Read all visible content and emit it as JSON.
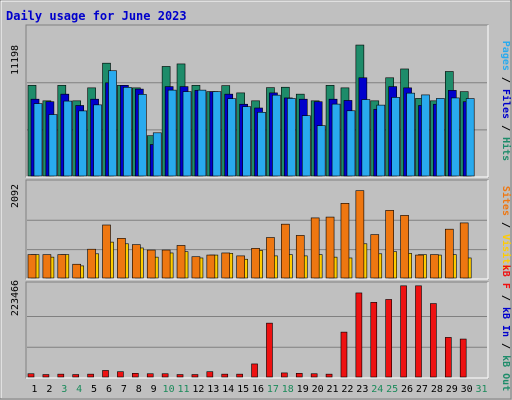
{
  "page": {
    "title": "Daily usage for June 2023",
    "colors": {
      "background": "#c0c0c0",
      "title": "#0000cc",
      "weekday": "#000000",
      "weekend": "#1a8a5a"
    }
  },
  "chart_data": [
    {
      "type": "bar",
      "name": "hits-files-pages",
      "categories": [
        "1",
        "2",
        "3",
        "4",
        "5",
        "6",
        "7",
        "8",
        "9",
        "10",
        "11",
        "12",
        "13",
        "14",
        "15",
        "16",
        "17",
        "18",
        "19",
        "20",
        "21",
        "22",
        "23",
        "24",
        "25",
        "26",
        "27",
        "28",
        "29",
        "30",
        "31"
      ],
      "y_tick_label": "11198",
      "ylim": [
        0,
        11198
      ],
      "series": [
        {
          "name": "Hits",
          "color": "#1e8c6a",
          "values": [
            7200,
            5970,
            7200,
            5970,
            7000,
            8960,
            7200,
            7000,
            3200,
            8700,
            8900,
            7200,
            6700,
            7180,
            6600,
            5970,
            7020,
            7050,
            6500,
            5970,
            7200,
            7000,
            10400,
            5970,
            7800,
            8500,
            6160,
            5970,
            8300,
            6700,
            0
          ]
        },
        {
          "name": "Files",
          "color": "#0000cc",
          "values": [
            6100,
            5900,
            6500,
            5600,
            6100,
            7400,
            7200,
            6900,
            2500,
            7100,
            7100,
            6800,
            6700,
            6500,
            5700,
            5400,
            6600,
            6200,
            6100,
            5900,
            6100,
            6000,
            7800,
            5300,
            7100,
            7000,
            5600,
            5700,
            6800,
            5900,
            0
          ]
        },
        {
          "name": "Pages",
          "color": "#29aaee",
          "values": [
            5750,
            4880,
            5950,
            5170,
            5650,
            8360,
            7040,
            6480,
            3430,
            6820,
            6700,
            6820,
            6700,
            6140,
            5510,
            5060,
            6420,
            6160,
            4790,
            4000,
            5710,
            5180,
            6070,
            5630,
            6240,
            6580,
            6440,
            6160,
            6200,
            6150,
            0
          ]
        }
      ]
    },
    {
      "type": "bar",
      "name": "visits-sites",
      "categories": [
        "1",
        "2",
        "3",
        "4",
        "5",
        "6",
        "7",
        "8",
        "9",
        "10",
        "11",
        "12",
        "13",
        "14",
        "15",
        "16",
        "17",
        "18",
        "19",
        "20",
        "21",
        "22",
        "23",
        "24",
        "25",
        "26",
        "27",
        "28",
        "29",
        "30",
        "31"
      ],
      "y_tick_label": "2092",
      "ylim": [
        0,
        2092
      ],
      "series": [
        {
          "name": "Visits",
          "color": "#ffcc00",
          "values": [
            560,
            500,
            560,
            290,
            580,
            860,
            820,
            720,
            500,
            600,
            630,
            480,
            550,
            590,
            450,
            660,
            530,
            560,
            530,
            560,
            500,
            480,
            820,
            580,
            630,
            590,
            560,
            550,
            560,
            480,
            0
          ]
        },
        {
          "name": "Sites",
          "color": "#ee7711",
          "values": [
            560,
            560,
            560,
            330,
            690,
            1270,
            950,
            800,
            670,
            670,
            780,
            510,
            550,
            600,
            530,
            710,
            970,
            1290,
            1020,
            1440,
            1460,
            1790,
            2092,
            1040,
            1620,
            1500,
            550,
            560,
            1170,
            1320,
            0
          ]
        }
      ]
    },
    {
      "type": "bar",
      "name": "kbytes",
      "categories": [
        "1",
        "2",
        "3",
        "4",
        "5",
        "6",
        "7",
        "8",
        "9",
        "10",
        "11",
        "12",
        "13",
        "14",
        "15",
        "16",
        "17",
        "18",
        "19",
        "20",
        "21",
        "22",
        "23",
        "24",
        "25",
        "26",
        "27",
        "28",
        "29",
        "30",
        "31"
      ],
      "y_tick_label": "223466",
      "ylim": [
        0,
        223466
      ],
      "series": [
        {
          "name": "KBytes",
          "color": "#ee1111",
          "values": [
            8000,
            6000,
            7000,
            6000,
            7000,
            16000,
            13000,
            9000,
            8000,
            8000,
            6000,
            6000,
            13000,
            7000,
            7000,
            32000,
            132000,
            10000,
            9000,
            8000,
            7000,
            110000,
            206000,
            183000,
            190000,
            223466,
            223466,
            180000,
            97000,
            93000,
            0
          ]
        }
      ]
    }
  ],
  "side_labels": {
    "top": [
      {
        "text": "Pages",
        "color": "#29aaee"
      },
      {
        "text": " / ",
        "color": "#000000"
      },
      {
        "text": "Files",
        "color": "#0000cc"
      },
      {
        "text": " / ",
        "color": "#000000"
      },
      {
        "text": "Hits",
        "color": "#1e8c6a"
      }
    ],
    "middle": [
      {
        "text": "Sites",
        "color": "#ee7711"
      },
      {
        "text": " / ",
        "color": "#000000"
      },
      {
        "text": "Visits",
        "color": "#ffcc00"
      }
    ],
    "bottom": [
      {
        "text": "kB F",
        "color": "#ee1111"
      },
      {
        "text": " / ",
        "color": "#000000"
      },
      {
        "text": "kB In",
        "color": "#0000cc"
      },
      {
        "text": " / ",
        "color": "#000000"
      },
      {
        "text": "kB Out",
        "color": "#1e8c6a"
      }
    ]
  },
  "weekend_days": [
    "3",
    "4",
    "10",
    "11",
    "17",
    "18",
    "24",
    "25",
    "31"
  ]
}
